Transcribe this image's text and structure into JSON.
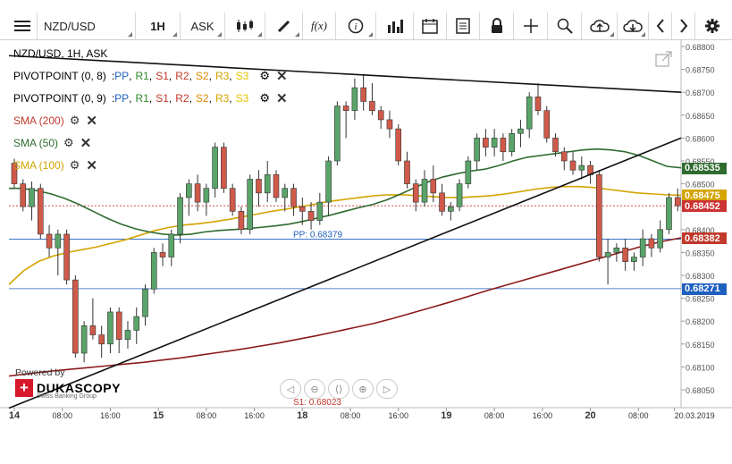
{
  "toolbar": {
    "instrument": "NZD/USD",
    "timeframe": "1H",
    "side": "ASK",
    "function_label": "f(x)"
  },
  "legend": {
    "header": "NZD/USD, 1H, ASK",
    "pivot1": {
      "name": "PIVOTPOINT (0, 8)",
      "sep": ": ",
      "levels": [
        "PP",
        "R1",
        "S1",
        "R2",
        "S2",
        "R3",
        "S3"
      ]
    },
    "pivot2": {
      "name": "PIVOTPOINT (0, 9)",
      "sep": ": ",
      "levels": [
        "PP",
        "R1",
        "S1",
        "R2",
        "S2",
        "R3",
        "S3"
      ]
    },
    "sma200": "SMA (200)",
    "sma50": "SMA (50)",
    "sma100": "SMA (100)"
  },
  "colors": {
    "pp": "#1f5fbf",
    "r1": "#2e8b2e",
    "s1": "#c0392b",
    "r2": "#c0392b",
    "s2": "#e08a00",
    "r3": "#d4a400",
    "s3": "#e6c200",
    "sma200": "#8b1a1a",
    "sma50": "#2f6b2f",
    "sma100": "#d4a400",
    "candle_up": "#5aa469",
    "candle_down": "#d05a4a",
    "trend": "#111111",
    "pivot_line": "#1f5fbf",
    "ask_line": "#cc3333"
  },
  "branding": {
    "powered": "Powered by",
    "name": "DUKASCOPY",
    "sub": "Swiss Banking Group"
  },
  "chart_data": {
    "type": "candlestick",
    "instrument": "NZD/USD",
    "timeframe": "1H",
    "y_ticks": [
      "0.68800",
      "0.68750",
      "0.68700",
      "0.68650",
      "0.68600",
      "0.68550",
      "0.68500",
      "0.68450",
      "0.68400",
      "0.68350",
      "0.68300",
      "0.68250",
      "0.68200",
      "0.68150",
      "0.68100",
      "0.68050"
    ],
    "ylim": [
      0.6801,
      0.6881
    ],
    "x_ticks": [
      {
        "label": "14",
        "bold": true,
        "x": 0
      },
      {
        "label": "08:00",
        "bold": false,
        "x": 8
      },
      {
        "label": "16:00",
        "bold": false,
        "x": 16
      },
      {
        "label": "15",
        "bold": true,
        "x": 24
      },
      {
        "label": "08:00",
        "bold": false,
        "x": 32
      },
      {
        "label": "16:00",
        "bold": false,
        "x": 40
      },
      {
        "label": "18",
        "bold": true,
        "x": 48
      },
      {
        "label": "08:00",
        "bold": false,
        "x": 56
      },
      {
        "label": "16:00",
        "bold": false,
        "x": 64
      },
      {
        "label": "19",
        "bold": true,
        "x": 72
      },
      {
        "label": "08:00",
        "bold": false,
        "x": 80
      },
      {
        "label": "16:00",
        "bold": false,
        "x": 88
      },
      {
        "label": "20",
        "bold": true,
        "x": 96
      },
      {
        "label": "08:00",
        "bold": false,
        "x": 104
      },
      {
        "label": "20.03.2019",
        "bold": false,
        "x": 110
      }
    ],
    "price_tags": [
      {
        "label": "0.68535",
        "value": 0.68535,
        "color": "#2f6b2f"
      },
      {
        "label": "0.68475",
        "value": 0.68475,
        "color": "#d4a400"
      },
      {
        "label": "0.68452",
        "value": 0.68452,
        "color": "#cc3333"
      },
      {
        "label": "0.68382",
        "value": 0.68382,
        "color": "#c0392b"
      },
      {
        "label": "0.68271",
        "value": 0.68271,
        "color": "#1f5fbf"
      }
    ],
    "level_labels": [
      {
        "label": "PP: 0.68379",
        "value": 0.68379
      },
      {
        "label": "S1: 0.68023",
        "value": 0.68023
      }
    ],
    "ask_price": 0.68452,
    "pivot_pp": 0.68379,
    "support_level": 0.68271,
    "candles": [
      [
        0.68545,
        0.68555,
        0.6849,
        0.685
      ],
      [
        0.685,
        0.6851,
        0.6844,
        0.6845
      ],
      [
        0.6845,
        0.68505,
        0.6842,
        0.6849
      ],
      [
        0.6849,
        0.685,
        0.6838,
        0.6839
      ],
      [
        0.6839,
        0.6841,
        0.6834,
        0.6836
      ],
      [
        0.6836,
        0.684,
        0.683,
        0.6839
      ],
      [
        0.6839,
        0.684,
        0.6828,
        0.6829
      ],
      [
        0.6829,
        0.683,
        0.6812,
        0.6813
      ],
      [
        0.6813,
        0.682,
        0.6811,
        0.6819
      ],
      [
        0.6819,
        0.6825,
        0.6816,
        0.6817
      ],
      [
        0.6817,
        0.6819,
        0.6812,
        0.6815
      ],
      [
        0.6815,
        0.6823,
        0.6813,
        0.6822
      ],
      [
        0.6822,
        0.6823,
        0.6813,
        0.6816
      ],
      [
        0.6816,
        0.682,
        0.6814,
        0.6818
      ],
      [
        0.6818,
        0.6823,
        0.6815,
        0.6821
      ],
      [
        0.6821,
        0.6828,
        0.6819,
        0.6827
      ],
      [
        0.6827,
        0.6836,
        0.6826,
        0.6835
      ],
      [
        0.6835,
        0.6837,
        0.6832,
        0.6834
      ],
      [
        0.6834,
        0.684,
        0.6832,
        0.6839
      ],
      [
        0.6839,
        0.6848,
        0.6837,
        0.6847
      ],
      [
        0.6847,
        0.6851,
        0.6843,
        0.685
      ],
      [
        0.685,
        0.6852,
        0.6844,
        0.6846
      ],
      [
        0.6846,
        0.685,
        0.6843,
        0.6849
      ],
      [
        0.6849,
        0.6859,
        0.6847,
        0.6858
      ],
      [
        0.6858,
        0.6859,
        0.6848,
        0.6849
      ],
      [
        0.6849,
        0.685,
        0.6843,
        0.6844
      ],
      [
        0.6844,
        0.6845,
        0.6839,
        0.684
      ],
      [
        0.684,
        0.6852,
        0.6839,
        0.6851
      ],
      [
        0.6851,
        0.6853,
        0.6845,
        0.6848
      ],
      [
        0.6848,
        0.6855,
        0.6846,
        0.6852
      ],
      [
        0.6852,
        0.6853,
        0.6846,
        0.6847
      ],
      [
        0.6847,
        0.685,
        0.6844,
        0.6849
      ],
      [
        0.6849,
        0.685,
        0.6843,
        0.6845
      ],
      [
        0.6845,
        0.6847,
        0.6841,
        0.6844
      ],
      [
        0.6844,
        0.6846,
        0.684,
        0.6842
      ],
      [
        0.6842,
        0.6848,
        0.6841,
        0.6846
      ],
      [
        0.6846,
        0.6856,
        0.6843,
        0.6855
      ],
      [
        0.6855,
        0.6868,
        0.6854,
        0.6867
      ],
      [
        0.6867,
        0.6868,
        0.686,
        0.6866
      ],
      [
        0.6866,
        0.6873,
        0.6864,
        0.6871
      ],
      [
        0.6871,
        0.6874,
        0.6866,
        0.6868
      ],
      [
        0.6868,
        0.6872,
        0.6865,
        0.6866
      ],
      [
        0.6866,
        0.6867,
        0.6862,
        0.6864
      ],
      [
        0.6864,
        0.6866,
        0.686,
        0.6862
      ],
      [
        0.6862,
        0.6863,
        0.6854,
        0.6855
      ],
      [
        0.6855,
        0.6857,
        0.6849,
        0.685
      ],
      [
        0.685,
        0.6851,
        0.6844,
        0.6846
      ],
      [
        0.6846,
        0.6853,
        0.6845,
        0.6851
      ],
      [
        0.6851,
        0.6854,
        0.6846,
        0.6848
      ],
      [
        0.6848,
        0.685,
        0.6843,
        0.6844
      ],
      [
        0.6844,
        0.6846,
        0.6842,
        0.6845
      ],
      [
        0.6845,
        0.6851,
        0.6844,
        0.685
      ],
      [
        0.685,
        0.6856,
        0.6849,
        0.6855
      ],
      [
        0.6855,
        0.6861,
        0.6853,
        0.686
      ],
      [
        0.686,
        0.6862,
        0.6856,
        0.6858
      ],
      [
        0.6858,
        0.6862,
        0.6856,
        0.686
      ],
      [
        0.686,
        0.6861,
        0.6855,
        0.6857
      ],
      [
        0.6857,
        0.6862,
        0.6856,
        0.6861
      ],
      [
        0.6861,
        0.6864,
        0.6858,
        0.6862
      ],
      [
        0.6862,
        0.687,
        0.686,
        0.6869
      ],
      [
        0.6869,
        0.6872,
        0.6865,
        0.6866
      ],
      [
        0.6866,
        0.6867,
        0.6859,
        0.686
      ],
      [
        0.686,
        0.6861,
        0.6856,
        0.6857
      ],
      [
        0.6857,
        0.6858,
        0.6853,
        0.6855
      ],
      [
        0.6855,
        0.6857,
        0.6852,
        0.6853
      ],
      [
        0.6853,
        0.6856,
        0.6851,
        0.6854
      ],
      [
        0.6854,
        0.6855,
        0.685,
        0.6852
      ],
      [
        0.6852,
        0.6853,
        0.6833,
        0.6834
      ],
      [
        0.6834,
        0.6838,
        0.6828,
        0.6835
      ],
      [
        0.6835,
        0.6837,
        0.6833,
        0.6836
      ],
      [
        0.6836,
        0.6838,
        0.6831,
        0.6833
      ],
      [
        0.6833,
        0.6835,
        0.6831,
        0.6834
      ],
      [
        0.6834,
        0.684,
        0.6832,
        0.6838
      ],
      [
        0.6838,
        0.6839,
        0.6834,
        0.6836
      ],
      [
        0.6836,
        0.6842,
        0.6835,
        0.684
      ],
      [
        0.684,
        0.6848,
        0.6839,
        0.6847
      ],
      [
        0.6847,
        0.6849,
        0.6844,
        0.68452
      ]
    ],
    "sma50": [
      0.6849,
      0.6849,
      0.68485,
      0.68478,
      0.68468,
      0.68455,
      0.6844,
      0.68425,
      0.68412,
      0.68402,
      0.68395,
      0.6839,
      0.68388,
      0.6839,
      0.68395,
      0.68398,
      0.684,
      0.68402,
      0.68405,
      0.68408,
      0.68412,
      0.68418,
      0.68425,
      0.68432,
      0.6844,
      0.68448,
      0.68455,
      0.68465,
      0.68478,
      0.68492,
      0.68505,
      0.68515,
      0.68522,
      0.68528,
      0.68532,
      0.6854,
      0.6855,
      0.68558,
      0.68562,
      0.68566,
      0.6857,
      0.68574,
      0.68576,
      0.68574,
      0.6857,
      0.68562,
      0.6855,
      0.68538,
      0.68535
    ],
    "sma100": [
      0.6828,
      0.6831,
      0.6833,
      0.68342,
      0.6835,
      0.68356,
      0.68362,
      0.6837,
      0.68378,
      0.68388,
      0.68398,
      0.68405,
      0.6841,
      0.68413,
      0.68417,
      0.68422,
      0.68428,
      0.68434,
      0.6844,
      0.68445,
      0.6845,
      0.68456,
      0.68462,
      0.68466,
      0.6847,
      0.68474,
      0.68476,
      0.68476,
      0.68474,
      0.68472,
      0.6847,
      0.6847,
      0.68472,
      0.68474,
      0.68478,
      0.68483,
      0.68488,
      0.68492,
      0.68494,
      0.68494,
      0.68492,
      0.68488,
      0.68484,
      0.6848,
      0.68478,
      0.68476,
      0.68475
    ],
    "sma200": [
      0.6808,
      0.68085,
      0.6809,
      0.68094,
      0.68098,
      0.68102,
      0.68106,
      0.6811,
      0.68115,
      0.6812,
      0.68126,
      0.68132,
      0.68138,
      0.68145,
      0.68152,
      0.6816,
      0.68168,
      0.68177,
      0.68186,
      0.68195,
      0.68206,
      0.68218,
      0.6823,
      0.68242,
      0.68255,
      0.68268,
      0.6828,
      0.68292,
      0.68304,
      0.68316,
      0.68328,
      0.6834,
      0.68352,
      0.68364,
      0.68374,
      0.68382
    ],
    "trendlines": [
      {
        "from": [
          0,
          0.6878
        ],
        "to": [
          112,
          0.687
        ]
      },
      {
        "from": [
          0,
          0.6801
        ],
        "to": [
          112,
          0.686
        ]
      }
    ]
  }
}
